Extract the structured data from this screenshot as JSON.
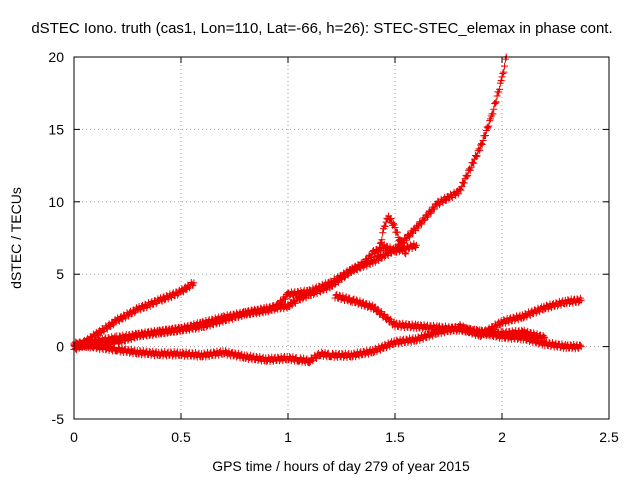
{
  "chart_data": {
    "type": "scatter",
    "title": "dSTEC Iono. truth (cas1, Lon=110, Lat=-66, h=26): STEC-STEC_elemax in phase cont.",
    "xlabel": "GPS time / hours of day 279 of year 2015",
    "ylabel": "dSTEC  / TECUs",
    "xlim": [
      0,
      2.5
    ],
    "ylim": [
      -5,
      20
    ],
    "x_ticks": [
      "0",
      "0.5",
      "1",
      "1.5",
      "2",
      "2.5"
    ],
    "y_ticks": [
      "-5",
      "0",
      "5",
      "10",
      "15",
      "20"
    ],
    "grid": true,
    "marker": "+",
    "marker_color": "#ee0000",
    "series": [
      {
        "x": [
          0.0,
          0.1,
          0.2,
          0.3,
          0.4,
          0.5,
          0.56
        ],
        "y": [
          -0.2,
          0.8,
          1.8,
          2.6,
          3.2,
          3.8,
          4.4
        ]
      },
      {
        "x": [
          0.0,
          0.2,
          0.3,
          0.4,
          0.5,
          0.6,
          0.7,
          0.8,
          0.9,
          0.95,
          1.0,
          1.1,
          1.2,
          1.3,
          1.4,
          1.5,
          1.6,
          1.7,
          1.8,
          1.9,
          1.95,
          2.0,
          2.02
        ],
        "y": [
          0.0,
          0.3,
          0.8,
          1.0,
          1.2,
          1.6,
          2.0,
          2.3,
          2.5,
          2.8,
          3.6,
          3.8,
          4.4,
          5.3,
          5.9,
          6.7,
          8.2,
          9.9,
          10.7,
          13.8,
          15.8,
          18.5,
          20.0
        ]
      },
      {
        "x": [
          0.0,
          0.2,
          0.4,
          0.6,
          0.8,
          0.9,
          1.0,
          1.05,
          1.1,
          1.2,
          1.3,
          1.35,
          1.4,
          1.45,
          1.5,
          1.6
        ],
        "y": [
          0.1,
          0.6,
          1.0,
          1.4,
          2.3,
          2.6,
          2.8,
          3.3,
          3.6,
          4.2,
          5.3,
          5.7,
          6.5,
          6.9,
          6.6,
          7.0
        ]
      },
      {
        "x": [
          1.42,
          1.45,
          1.47,
          1.5,
          1.53,
          1.55
        ],
        "y": [
          6.2,
          8.3,
          9.0,
          8.2,
          7.0,
          6.4
        ]
      },
      {
        "x": [
          0.0,
          0.2,
          0.3,
          0.4,
          0.5,
          0.6,
          0.7,
          0.8,
          0.9,
          1.0,
          1.05,
          1.1,
          1.15,
          1.2,
          1.3,
          1.4,
          1.5,
          1.6,
          1.7,
          1.8,
          1.9,
          2.0,
          2.1,
          2.2,
          2.3,
          2.37
        ],
        "y": [
          0.2,
          -0.2,
          -0.4,
          -0.5,
          -0.5,
          -0.6,
          -0.4,
          -0.7,
          -0.9,
          -0.8,
          -0.9,
          -1.0,
          -0.5,
          -0.6,
          -0.6,
          -0.3,
          0.3,
          0.5,
          1.0,
          1.3,
          0.8,
          1.7,
          2.1,
          2.7,
          3.1,
          3.2
        ]
      },
      {
        "x": [
          1.22,
          1.3,
          1.4,
          1.5,
          1.6,
          1.7,
          1.8,
          1.9,
          2.0,
          2.1,
          2.2,
          2.3,
          2.37
        ],
        "y": [
          3.5,
          3.2,
          2.7,
          1.5,
          1.4,
          1.3,
          1.2,
          1.0,
          0.7,
          0.6,
          0.2,
          0.0,
          0.0
        ]
      },
      {
        "x": [
          1.8,
          1.85,
          1.9,
          1.95,
          2.0,
          2.1,
          2.2
        ],
        "y": [
          1.4,
          1.1,
          1.0,
          0.9,
          0.9,
          1.0,
          0.6
        ]
      }
    ]
  }
}
